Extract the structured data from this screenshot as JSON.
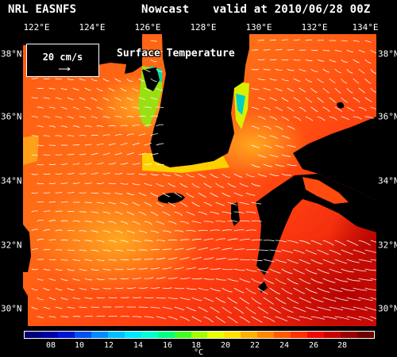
{
  "header": {
    "left": "NRL EASNFS",
    "middle": "Nowcast",
    "right": "valid at 2010/06/28 00Z"
  },
  "map_title": "Surface Temperature",
  "vector_legend": {
    "label": "20 cm/s",
    "arrow_icon": "arrow-right-icon"
  },
  "axes": {
    "lon_labels": [
      "122°E",
      "124°E",
      "126°E",
      "128°E",
      "130°E",
      "132°E",
      "134°E"
    ],
    "lat_labels": [
      "38°N",
      "36°N",
      "34°N",
      "32°N",
      "30°N"
    ]
  },
  "colorbar": {
    "tick_labels": [
      "08",
      "10",
      "12",
      "14",
      "16",
      "18",
      "20",
      "22",
      "24",
      "26",
      "28"
    ],
    "unit": "°C",
    "colors": [
      "#00007a",
      "#0000a8",
      "#0014d4",
      "#0050f0",
      "#008cff",
      "#00c0ff",
      "#00e8ff",
      "#00ffd0",
      "#00ff80",
      "#40ff20",
      "#a0ff00",
      "#e8ff00",
      "#ffe000",
      "#ffb000",
      "#ff8800",
      "#ff5a00",
      "#ff3000",
      "#f00800",
      "#c80000",
      "#9a0000",
      "#6e0000"
    ]
  },
  "palette": {
    "land": "#000000",
    "sea_warm": "#ff4a10",
    "sea_mid": "#ff6a14",
    "sea_cool": "#ff9a18",
    "coastal_cold": "#00d8a0",
    "vectors": "#ffffff"
  }
}
